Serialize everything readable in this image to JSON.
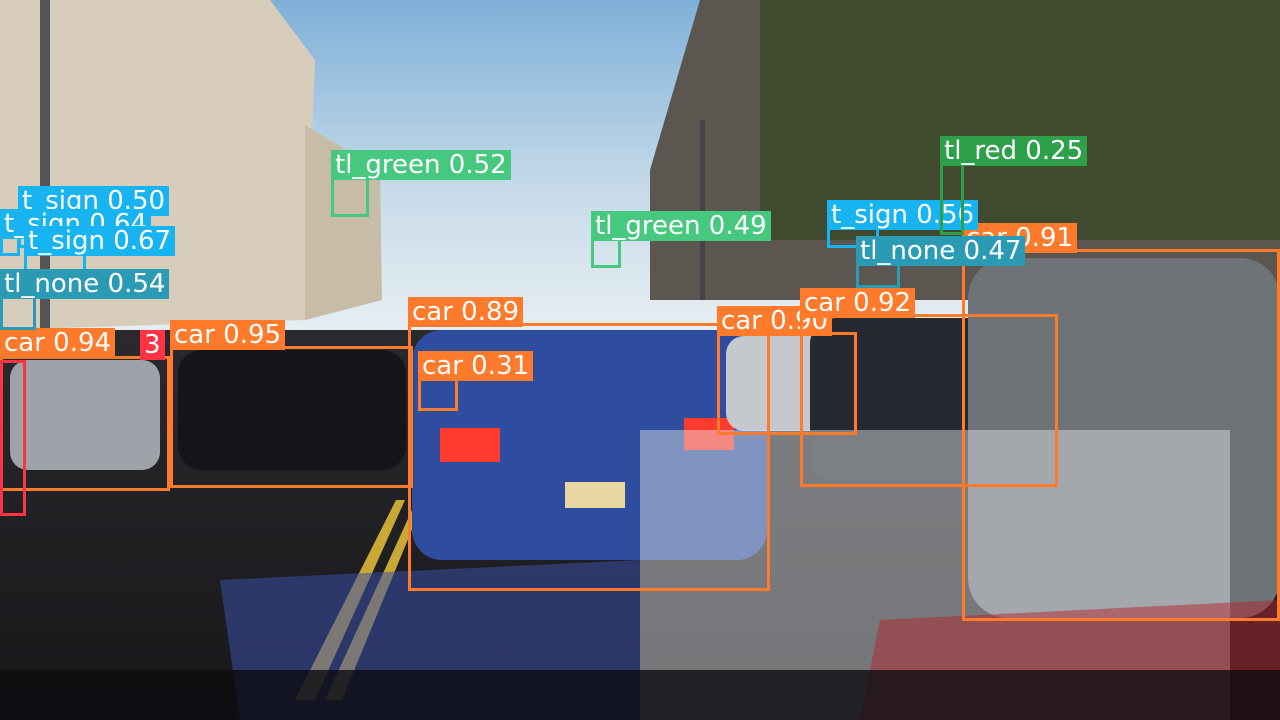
{
  "colors": {
    "car": "#ff7a2b",
    "t_sign": "#18b4f2",
    "tl_green": "#46c97e",
    "tl_none": "#2b9bb5",
    "tl_red": "#2ea04a",
    "other_red": "#ff3344"
  },
  "detections": [
    {
      "id": "car-094",
      "label": "car 0.94",
      "cls": "car"
    },
    {
      "id": "car-095",
      "label": "car 0.95",
      "cls": "car"
    },
    {
      "id": "car-089",
      "label": "car 0.89",
      "cls": "car"
    },
    {
      "id": "car-031",
      "label": "car 0.31",
      "cls": "car"
    },
    {
      "id": "car-090",
      "label": "car 0.90",
      "cls": "car"
    },
    {
      "id": "car-092",
      "label": "car 0.92",
      "cls": "car"
    },
    {
      "id": "car-091",
      "label": "car 0.91",
      "cls": "car"
    },
    {
      "id": "t-sign-050",
      "label": "t_sign 0.50",
      "cls": "t_sign"
    },
    {
      "id": "t-sign-064",
      "label": "t_sign 0.64",
      "cls": "t_sign"
    },
    {
      "id": "t-sign-067",
      "label": "t_sign 0.67",
      "cls": "t_sign"
    },
    {
      "id": "t-sign-056",
      "label": "t_sign 0.56",
      "cls": "t_sign"
    },
    {
      "id": "tl-none-054",
      "label": "tl_none 0.54",
      "cls": "tl_none"
    },
    {
      "id": "tl-none-047",
      "label": "tl_none 0.47",
      "cls": "tl_none"
    },
    {
      "id": "tl-green-052",
      "label": "tl_green 0.52",
      "cls": "tl_green"
    },
    {
      "id": "tl-green-049",
      "label": "tl_green 0.49",
      "cls": "tl_green"
    },
    {
      "id": "tl-red-025",
      "label": "tl_red 0.25",
      "cls": "tl_red"
    },
    {
      "id": "partial-red",
      "label": "3",
      "cls": "other_red"
    }
  ]
}
